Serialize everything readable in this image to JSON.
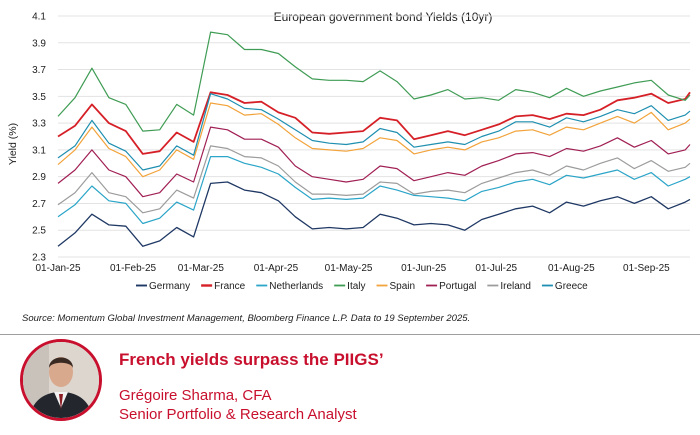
{
  "chart_data": {
    "type": "line",
    "title": "European government bond Yields (10yr)",
    "ylabel": "Yield (%)",
    "xlabel": "",
    "ylim": [
      2.3,
      4.1
    ],
    "yticks": [
      "4.1",
      "3.9",
      "3.7",
      "3.5",
      "3.3",
      "3.1",
      "2.9",
      "2.7",
      "2.5",
      "2.3"
    ],
    "x_range": [
      "2025-01-01",
      "2025-09-19"
    ],
    "xticks": [
      {
        "label": "01-Jan-25",
        "date": "2025-01-01"
      },
      {
        "label": "01-Feb-25",
        "date": "2025-02-01"
      },
      {
        "label": "01-Mar-25",
        "date": "2025-03-01"
      },
      {
        "label": "01-Apr-25",
        "date": "2025-04-01"
      },
      {
        "label": "01-May-25",
        "date": "2025-05-01"
      },
      {
        "label": "01-Jun-25",
        "date": "2025-06-01"
      },
      {
        "label": "01-Jul-25",
        "date": "2025-07-01"
      },
      {
        "label": "01-Aug-25",
        "date": "2025-08-01"
      },
      {
        "label": "01-Sep-25",
        "date": "2025-09-01"
      }
    ],
    "grid": "horizontal",
    "legend": "bottom",
    "dates": [
      "2025-01-01",
      "2025-01-08",
      "2025-01-15",
      "2025-01-22",
      "2025-01-29",
      "2025-02-05",
      "2025-02-12",
      "2025-02-19",
      "2025-02-26",
      "2025-03-05",
      "2025-03-12",
      "2025-03-19",
      "2025-03-26",
      "2025-04-02",
      "2025-04-09",
      "2025-04-16",
      "2025-04-23",
      "2025-04-30",
      "2025-05-07",
      "2025-05-14",
      "2025-05-21",
      "2025-05-28",
      "2025-06-04",
      "2025-06-11",
      "2025-06-18",
      "2025-06-25",
      "2025-07-02",
      "2025-07-09",
      "2025-07-16",
      "2025-07-23",
      "2025-07-30",
      "2025-08-06",
      "2025-08-13",
      "2025-08-20",
      "2025-08-27",
      "2025-09-03",
      "2025-09-10",
      "2025-09-17",
      "2025-09-19"
    ],
    "series": [
      {
        "name": "Germany",
        "color": "#1f3864",
        "width": 1.3,
        "values": [
          2.38,
          2.48,
          2.62,
          2.54,
          2.53,
          2.38,
          2.42,
          2.52,
          2.45,
          2.85,
          2.86,
          2.8,
          2.78,
          2.72,
          2.6,
          2.51,
          2.52,
          2.51,
          2.52,
          2.62,
          2.59,
          2.54,
          2.55,
          2.54,
          2.5,
          2.58,
          2.62,
          2.66,
          2.68,
          2.63,
          2.71,
          2.68,
          2.72,
          2.75,
          2.7,
          2.75,
          2.66,
          2.71,
          2.73
        ]
      },
      {
        "name": "France",
        "color": "#d62027",
        "width": 1.8,
        "values": [
          3.2,
          3.28,
          3.44,
          3.3,
          3.24,
          3.07,
          3.09,
          3.23,
          3.16,
          3.53,
          3.51,
          3.45,
          3.46,
          3.38,
          3.34,
          3.23,
          3.22,
          3.23,
          3.24,
          3.34,
          3.32,
          3.18,
          3.21,
          3.24,
          3.21,
          3.25,
          3.29,
          3.35,
          3.36,
          3.33,
          3.37,
          3.36,
          3.4,
          3.47,
          3.49,
          3.52,
          3.45,
          3.48,
          3.53
        ]
      },
      {
        "name": "Netherlands",
        "color": "#2ba5c8",
        "width": 1.2,
        "values": [
          2.6,
          2.69,
          2.83,
          2.72,
          2.7,
          2.55,
          2.59,
          2.71,
          2.65,
          3.05,
          3.05,
          3.0,
          2.97,
          2.92,
          2.82,
          2.73,
          2.74,
          2.73,
          2.74,
          2.83,
          2.8,
          2.76,
          2.75,
          2.74,
          2.72,
          2.79,
          2.82,
          2.86,
          2.88,
          2.84,
          2.91,
          2.89,
          2.92,
          2.95,
          2.88,
          2.93,
          2.83,
          2.88,
          2.9
        ]
      },
      {
        "name": "Italy",
        "color": "#3f9c54",
        "width": 1.2,
        "values": [
          3.35,
          3.49,
          3.71,
          3.49,
          3.44,
          3.24,
          3.25,
          3.44,
          3.36,
          3.98,
          3.96,
          3.85,
          3.85,
          3.82,
          3.72,
          3.63,
          3.62,
          3.62,
          3.61,
          3.69,
          3.61,
          3.48,
          3.51,
          3.55,
          3.48,
          3.49,
          3.47,
          3.55,
          3.53,
          3.49,
          3.56,
          3.5,
          3.54,
          3.57,
          3.6,
          3.62,
          3.51,
          3.47,
          3.51
        ]
      },
      {
        "name": "Spain",
        "color": "#f2a33b",
        "width": 1.2,
        "values": [
          2.99,
          3.1,
          3.27,
          3.11,
          3.05,
          2.9,
          2.95,
          3.1,
          3.03,
          3.45,
          3.43,
          3.36,
          3.37,
          3.29,
          3.19,
          3.11,
          3.1,
          3.09,
          3.11,
          3.19,
          3.17,
          3.07,
          3.1,
          3.12,
          3.1,
          3.16,
          3.19,
          3.24,
          3.25,
          3.21,
          3.27,
          3.25,
          3.3,
          3.35,
          3.3,
          3.38,
          3.25,
          3.3,
          3.33
        ]
      },
      {
        "name": "Portugal",
        "color": "#a01f54",
        "width": 1.2,
        "values": [
          2.85,
          2.95,
          3.1,
          2.95,
          2.9,
          2.75,
          2.78,
          2.92,
          2.86,
          3.27,
          3.25,
          3.18,
          3.18,
          3.12,
          2.98,
          2.9,
          2.88,
          2.86,
          2.88,
          2.98,
          2.96,
          2.87,
          2.9,
          2.93,
          2.91,
          2.98,
          3.02,
          3.07,
          3.08,
          3.05,
          3.11,
          3.09,
          3.13,
          3.19,
          3.12,
          3.17,
          3.07,
          3.1,
          3.14
        ]
      },
      {
        "name": "Ireland",
        "color": "#9c9c9c",
        "width": 1.2,
        "values": [
          2.69,
          2.78,
          2.93,
          2.78,
          2.75,
          2.63,
          2.66,
          2.8,
          2.74,
          3.13,
          3.11,
          3.05,
          3.04,
          2.98,
          2.86,
          2.77,
          2.77,
          2.76,
          2.77,
          2.86,
          2.85,
          2.77,
          2.79,
          2.8,
          2.78,
          2.85,
          2.89,
          2.93,
          2.95,
          2.91,
          2.98,
          2.95,
          3.0,
          3.04,
          2.96,
          3.02,
          2.94,
          2.97,
          3.0
        ]
      },
      {
        "name": "Greece",
        "color": "#1e8fb0",
        "width": 1.2,
        "values": [
          3.04,
          3.13,
          3.32,
          3.15,
          3.09,
          2.95,
          2.98,
          3.13,
          3.06,
          3.52,
          3.48,
          3.41,
          3.4,
          3.33,
          3.25,
          3.17,
          3.15,
          3.14,
          3.16,
          3.26,
          3.23,
          3.12,
          3.14,
          3.16,
          3.14,
          3.2,
          3.24,
          3.31,
          3.31,
          3.27,
          3.34,
          3.31,
          3.35,
          3.4,
          3.37,
          3.43,
          3.32,
          3.36,
          3.39
        ]
      }
    ]
  },
  "source_text": "Source: Momentum Global Investment Management, Bloomberg Finance L.P. Data to 19 September 2025.",
  "footer": {
    "headline": "French yields surpass the PIIGS’",
    "author_name": "Grégoire Sharma, CFA",
    "author_role": "Senior Portfolio & Research Analyst"
  },
  "colors": {
    "accent": "#c8102e"
  }
}
